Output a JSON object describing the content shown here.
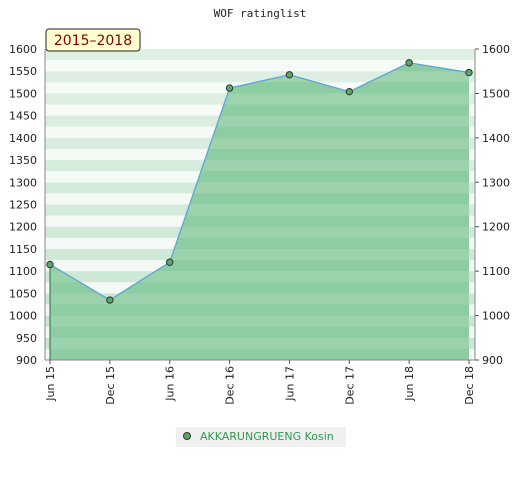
{
  "chart_data": {
    "type": "area",
    "title": "WOF ratinglist",
    "badge": "2015–2018",
    "categories": [
      "Jun 15",
      "Dec 15",
      "Jun 16",
      "Dec 16",
      "Jun 17",
      "Dec 17",
      "Jun 18",
      "Dec 18"
    ],
    "series": [
      {
        "name": "AKKARUNGRUENG Kosin",
        "values": [
          1115,
          1035,
          1120,
          1512,
          1542,
          1504,
          1569,
          1547
        ]
      }
    ],
    "ylim": [
      900,
      1600
    ],
    "yticks_left": [
      900,
      950,
      1000,
      1050,
      1100,
      1150,
      1200,
      1250,
      1300,
      1350,
      1400,
      1450,
      1500,
      1550,
      1600
    ],
    "yticks_right": [
      900,
      1000,
      1100,
      1200,
      1300,
      1400,
      1500,
      1600
    ],
    "grid": true,
    "legend_position": "bottom-center",
    "colors": {
      "band_light": "#f2f8f3",
      "band_dark": "#c7e5d0",
      "area_fill_light": "#97d0a8",
      "area_fill_dark": "#7dc394",
      "line": "#5aa6d6",
      "marker": "#58a86a",
      "badge_bg": "#ffffd0",
      "badge_text": "#8b0000"
    }
  }
}
